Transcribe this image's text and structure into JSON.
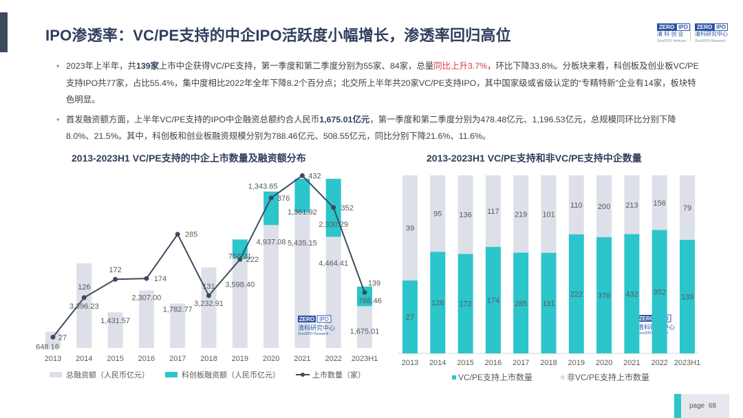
{
  "header": {
    "title": "IPO渗透率：VC/PE支持的中企IPO活跃度小幅增长，渗透率回归高位",
    "logo1": {
      "box1": "ZERO",
      "box2": "IPO",
      "cn": "清 科 创 业",
      "en": "Zero2IPO Ventures"
    },
    "logo2": {
      "box1": "ZERO",
      "box2": "IPO",
      "cn": "清科研究中心",
      "en": "Zero2IPO Research"
    }
  },
  "bullets": [
    {
      "parts": [
        {
          "t": "2023年上半年，共"
        },
        {
          "t": "139家",
          "s": "bold"
        },
        {
          "t": "上市中企获得VC/PE支持，第一季度和第二季度分别为55家、84家，总量"
        },
        {
          "t": "同比上升3.7%",
          "s": "red"
        },
        {
          "t": "，环比下降33.8%。分板块来看，科创板及创业板VC/PE支持IPO共77家，占比55.4%，集中度相比2022年全年下降8.2个百分点；北交所上半年共20家VC/PE支持IPO，其中国家级或省级认定的“专精特新”企业有14家，板块特色明显。"
        }
      ]
    },
    {
      "parts": [
        {
          "t": "首发融资额方面，上半年VC/PE支持的IPO中企融资总额约合人民币"
        },
        {
          "t": "1,675.01亿元",
          "s": "bold"
        },
        {
          "t": "，第一季度和第二季度分别为478.48亿元、1,196.53亿元，总规模同环比分别下降8.0%、21.5%。其中，科创板和创业板融资规模分别为788.46亿元、508.55亿元，同比分别下降21.6%、11.6%。"
        }
      ]
    }
  ],
  "watermark": {
    "box1": "ZERO",
    "box2": "IPO",
    "cn": "清科研究中心",
    "en": "Zero2IPO Research"
  },
  "chart_data": [
    {
      "type": "bar+line",
      "title": "2013-2023H1 VC/PE支持的中企上市数量及融资额分布",
      "categories": [
        "2013",
        "2014",
        "2015",
        "2016",
        "2017",
        "2018",
        "2019",
        "2020",
        "2021",
        "2022",
        "2023H1"
      ],
      "series": [
        {
          "name": "总融资额（人民币亿元）",
          "type": "bar",
          "color": "#dde0e8",
          "values": [
            648.16,
            3396.23,
            1431.57,
            2307.0,
            1782.77,
            3232.91,
            3598.4,
            4937.08,
            5435.15,
            4464.41,
            1675.01
          ],
          "labels": [
            "648.16",
            "3,396.23",
            "1,431.57",
            "2,307.00",
            "1,782.77",
            "3,232.91",
            "3,598.40",
            "4,937.08",
            "5,435.15",
            "4,464.41",
            "1,675.01"
          ]
        },
        {
          "name": "科创板融资额（人民币亿元）",
          "type": "bar-stacked",
          "color": "#2cc5cc",
          "values": [
            null,
            null,
            null,
            null,
            null,
            null,
            756.21,
            1343.65,
            1361.92,
            2330.29,
            788.46
          ],
          "labels": [
            "",
            "",
            "",
            "",
            "",
            "",
            "756.21",
            "1,343.65",
            "1,361.92",
            "2,330.29",
            "788.46"
          ]
        },
        {
          "name": "上市数量（家）",
          "type": "line",
          "color": "#3d4a5c",
          "values": [
            27,
            126,
            172,
            174,
            285,
            131,
            222,
            376,
            432,
            352,
            139
          ]
        }
      ],
      "legend": "bottom",
      "grid": false
    },
    {
      "type": "bar-stacked-100",
      "title": "2013-2023H1 VC/PE支持和非VC/PE支持中企数量",
      "categories": [
        "2013",
        "2014",
        "2015",
        "2016",
        "2017",
        "2018",
        "2019",
        "2020",
        "2021",
        "2022",
        "2023H1"
      ],
      "series": [
        {
          "name": "VC/PE支持上市数量",
          "color": "#2cc5cc",
          "values": [
            27,
            126,
            172,
            174,
            285,
            131,
            222,
            376,
            432,
            352,
            139
          ]
        },
        {
          "name": "非VC/PE支持上市数量",
          "color": "#dde0e8",
          "values": [
            39,
            95,
            136,
            117,
            219,
            101,
            110,
            200,
            213,
            156,
            79
          ]
        }
      ],
      "legend": "bottom",
      "grid": false
    }
  ],
  "footer": {
    "page_label": "page",
    "page_number": "68"
  }
}
